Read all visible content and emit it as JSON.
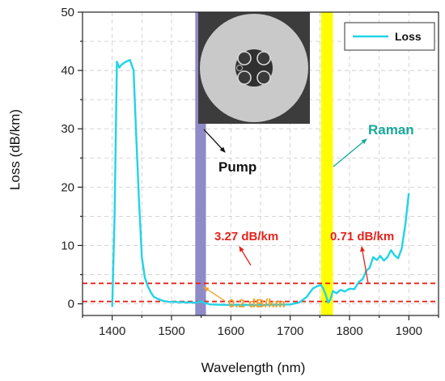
{
  "chart_data": {
    "type": "line",
    "xlabel": "Wavelength (nm)",
    "ylabel": "Loss (dB/km)",
    "xlim": [
      1350,
      1950
    ],
    "ylim": [
      -2,
      50
    ],
    "x_ticks": [
      1400,
      1500,
      1600,
      1700,
      1800,
      1900
    ],
    "y_ticks": [
      0,
      10,
      20,
      30,
      40,
      50
    ],
    "grid": true,
    "legend_position": "top-right",
    "series": [
      {
        "name": "Loss",
        "color": "#22d3e6",
        "x": [
          1400,
          1404,
          1408,
          1412,
          1416,
          1420,
          1425,
          1430,
          1436,
          1440,
          1445,
          1450,
          1455,
          1460,
          1465,
          1470,
          1478,
          1486,
          1495,
          1510,
          1525,
          1540,
          1550,
          1558,
          1565,
          1580,
          1600,
          1620,
          1650,
          1680,
          1700,
          1715,
          1728,
          1738,
          1745,
          1752,
          1756,
          1760,
          1764,
          1768,
          1772,
          1778,
          1785,
          1792,
          1800,
          1808,
          1816,
          1822,
          1828,
          1834,
          1840,
          1846,
          1852,
          1858,
          1864,
          1870,
          1876,
          1882,
          1888,
          1894,
          1900
        ],
        "y": [
          -0.5,
          15,
          41.5,
          40.5,
          41,
          41.3,
          41.6,
          41.8,
          40,
          30,
          18,
          8,
          4.5,
          3,
          2,
          1.2,
          0.8,
          0.5,
          0.35,
          0.3,
          0.25,
          0.2,
          0.4,
          0.1,
          -0.1,
          -0.15,
          -0.2,
          -0.2,
          -0.2,
          -0.15,
          -0.1,
          0.2,
          1.2,
          2.6,
          3.0,
          3.2,
          2.6,
          1.5,
          0.2,
          0.8,
          2.2,
          1.8,
          2.4,
          2.1,
          2.6,
          2.5,
          3.8,
          4.2,
          5.6,
          6.2,
          8.0,
          7.5,
          8.2,
          7.4,
          8.0,
          9.2,
          8.3,
          7.8,
          9.5,
          13.5,
          19
        ]
      }
    ],
    "reference_lines": [
      {
        "y": 3.5,
        "color": "#e4241d"
      },
      {
        "y": 0.4,
        "color": "#e4241d"
      }
    ],
    "bands": [
      {
        "x_from": 1540,
        "x_to": 1558,
        "color": "#8e8bc8",
        "label": "Pump"
      },
      {
        "x_from": 1752,
        "x_to": 1772,
        "color": "#ffff00",
        "label": "Raman"
      }
    ],
    "annotations": [
      {
        "text": "3.27 dB/km",
        "color": "#e4241d"
      },
      {
        "text": "0.71 dB/km",
        "color": "#e4241d"
      },
      {
        "text": "0.2 dB/km",
        "color": "#f0a02c"
      },
      {
        "text": "Pump",
        "color": "#111111"
      },
      {
        "text": "Raman",
        "color": "#19a89b"
      }
    ]
  }
}
